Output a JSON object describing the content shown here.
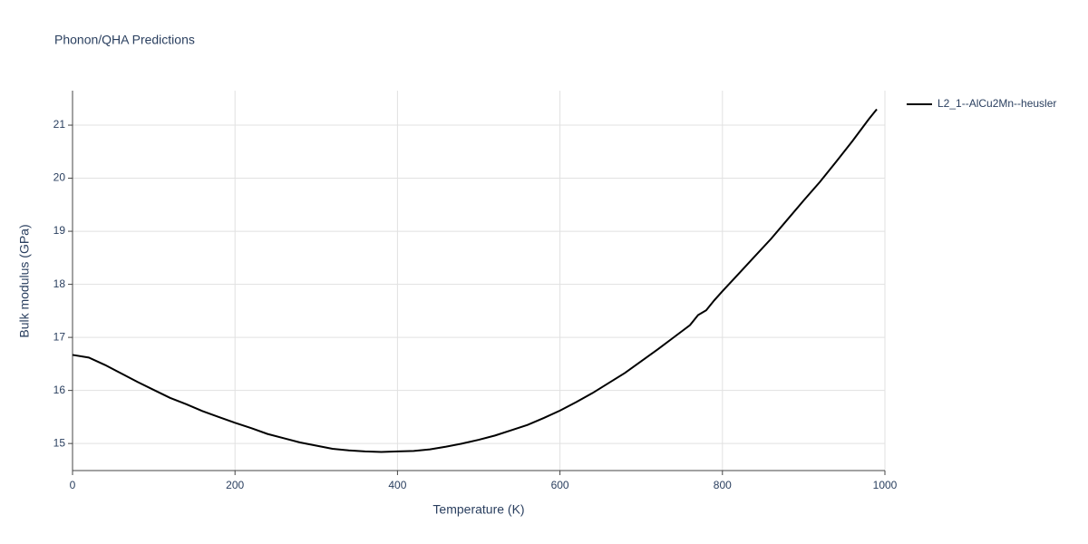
{
  "chart_data": {
    "type": "line",
    "title": "Phonon/QHA Predictions",
    "x_label": "Temperature (K)",
    "y_label": "Bulk modulus (GPa)",
    "x": [
      0,
      20,
      40,
      60,
      80,
      100,
      120,
      140,
      160,
      180,
      200,
      220,
      240,
      260,
      280,
      300,
      320,
      340,
      360,
      380,
      400,
      420,
      440,
      460,
      480,
      500,
      520,
      540,
      560,
      580,
      600,
      620,
      640,
      660,
      680,
      700,
      720,
      740,
      760,
      770,
      780,
      790,
      800,
      820,
      840,
      860,
      880,
      900,
      920,
      940,
      960,
      980,
      990
    ],
    "series": [
      {
        "name": "L2_1--AlCu2Mn--heusler",
        "color": "#000000",
        "values": [
          16.67,
          16.62,
          16.48,
          16.32,
          16.16,
          16.01,
          15.86,
          15.74,
          15.61,
          15.5,
          15.39,
          15.29,
          15.18,
          15.1,
          15.02,
          14.96,
          14.9,
          14.87,
          14.85,
          14.84,
          14.85,
          14.86,
          14.89,
          14.94,
          15.0,
          15.07,
          15.15,
          15.25,
          15.35,
          15.48,
          15.62,
          15.78,
          15.95,
          16.14,
          16.33,
          16.55,
          16.77,
          17.0,
          17.23,
          17.42,
          17.51,
          17.7,
          17.87,
          18.2,
          18.53,
          18.86,
          19.22,
          19.58,
          19.93,
          20.31,
          20.7,
          21.11,
          21.3
        ]
      }
    ],
    "xlim": [
      0,
      1000
    ],
    "xticks": [
      0,
      200,
      400,
      600,
      800,
      1000
    ],
    "ylim": [
      14.49,
      21.65
    ],
    "yticks": [
      15,
      16,
      17,
      18,
      19,
      20,
      21
    ],
    "grid": true,
    "legend": "right"
  }
}
